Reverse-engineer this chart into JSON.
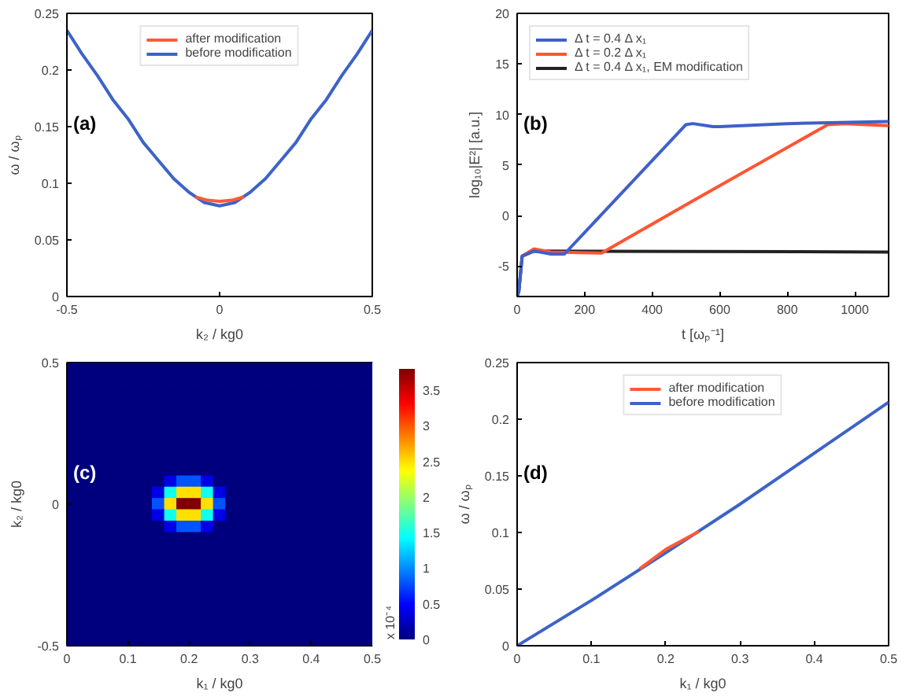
{
  "chart_data": [
    {
      "type": "line",
      "xlabel": "k₂ / kg0",
      "ylabel": "ω / ωₚ",
      "annotations": [
        "(a)"
      ],
      "xlim": [
        -0.5,
        0.5
      ],
      "ylim": [
        0,
        0.25
      ],
      "xticks": [
        -0.5,
        0,
        0.5
      ],
      "yticks": [
        0,
        0.05,
        0.1,
        0.15,
        0.2,
        0.25
      ],
      "legend": "top",
      "series": [
        {
          "name": "after modification",
          "color": "#ff5a36",
          "x": [
            -0.08,
            -0.04,
            0,
            0.04,
            0.08
          ],
          "values": [
            0.088,
            0.085,
            0.084,
            0.085,
            0.088
          ]
        },
        {
          "name": "before modification",
          "color": "#3d63c8",
          "x": [
            -0.5,
            -0.45,
            -0.4,
            -0.35,
            -0.3,
            -0.25,
            -0.2,
            -0.15,
            -0.1,
            -0.05,
            0,
            0.05,
            0.1,
            0.15,
            0.2,
            0.25,
            0.3,
            0.35,
            0.4,
            0.45,
            0.5
          ],
          "values": [
            0.235,
            0.214,
            0.195,
            0.174,
            0.157,
            0.136,
            0.12,
            0.104,
            0.092,
            0.083,
            0.08,
            0.083,
            0.092,
            0.104,
            0.12,
            0.136,
            0.157,
            0.174,
            0.195,
            0.214,
            0.235
          ]
        }
      ]
    },
    {
      "type": "line",
      "xlabel": "t [ωₚ⁻¹]",
      "ylabel": "log₁₀|E²| [a.u.]",
      "annotations": [
        "(b)"
      ],
      "xlim": [
        0,
        1100
      ],
      "ylim": [
        -8,
        20
      ],
      "xticks": [
        0,
        200,
        400,
        600,
        800,
        1000
      ],
      "yticks": [
        -5,
        0,
        5,
        10,
        15,
        20
      ],
      "legend": "top left",
      "series": [
        {
          "name": "Δ t = 0.4 Δ x₁",
          "color": "#4060c8",
          "x": [
            0,
            5,
            15,
            50,
            100,
            140,
            500,
            520,
            580,
            600,
            800,
            1100
          ],
          "values": [
            -8,
            -7.5,
            -4,
            -3.5,
            -3.8,
            -3.8,
            9,
            9.1,
            8.8,
            8.8,
            9.1,
            9.3
          ]
        },
        {
          "name": "Δ t = 0.2 Δ x₁",
          "color": "#ff5533",
          "x": [
            15,
            50,
            100,
            250,
            480,
            920,
            970,
            1100
          ],
          "values": [
            -4,
            -3.3,
            -3.6,
            -3.7,
            0.7,
            9,
            9.1,
            8.9
          ]
        },
        {
          "name": "Δ t = 0.4 Δ x₁, EM modification",
          "color": "#222222",
          "x": [
            0,
            5,
            15,
            50,
            100,
            1100
          ],
          "values": [
            -8,
            -7.5,
            -4,
            -3.5,
            null,
            -3.6
          ]
        }
      ]
    },
    {
      "type": "heatmap",
      "xlabel": "k₁ / kg0",
      "ylabel": "k₂ / kg0",
      "annotations": [
        "(c)"
      ],
      "xlim": [
        0,
        0.5
      ],
      "ylim": [
        -0.5,
        0.5
      ],
      "xticks": [
        0,
        0.1,
        0.2,
        0.3,
        0.4,
        0.5
      ],
      "yticks": [
        -0.5,
        0,
        0.5
      ],
      "clim": [
        0,
        3.8
      ],
      "cticks": [
        0,
        0.5,
        1,
        1.5,
        2,
        2.5,
        3,
        3.5
      ],
      "clabel": "x 10⁻⁴",
      "cells": [
        [
          0,
          0,
          0,
          0,
          0,
          0,
          0,
          0,
          0,
          0,
          0,
          0,
          0,
          0,
          0,
          0,
          0,
          0,
          0,
          0,
          0,
          0,
          0,
          0,
          0
        ],
        [
          0,
          0,
          0,
          0,
          0,
          0,
          0,
          0,
          0,
          0,
          0,
          0,
          0,
          0,
          0,
          0,
          0,
          0,
          0,
          0,
          0,
          0,
          0,
          0,
          0
        ],
        [
          0,
          0,
          0,
          0,
          0,
          0,
          0,
          0,
          0,
          0,
          0,
          0,
          0,
          0,
          0,
          0,
          0,
          0,
          0,
          0,
          0,
          0,
          0,
          0,
          0
        ],
        [
          0,
          0,
          0,
          0,
          0,
          0,
          0,
          0,
          0,
          0,
          0,
          0,
          0,
          0,
          0,
          0,
          0,
          0,
          0,
          0,
          0,
          0,
          0,
          0,
          0
        ],
        [
          0,
          0,
          0,
          0,
          0,
          0,
          0,
          0,
          0,
          0,
          0,
          0,
          0,
          0,
          0,
          0,
          0,
          0,
          0,
          0,
          0,
          0,
          0,
          0,
          0
        ],
        [
          0,
          0,
          0,
          0,
          0,
          0,
          0,
          0,
          0,
          0,
          0,
          0,
          0,
          0,
          0,
          0,
          0,
          0,
          0,
          0,
          0,
          0,
          0,
          0,
          0
        ],
        [
          0,
          0,
          0,
          0,
          0,
          0,
          0,
          0,
          0,
          0,
          0,
          0,
          0,
          0,
          0,
          0,
          0,
          0,
          0,
          0,
          0,
          0,
          0,
          0,
          0
        ],
        [
          0,
          0,
          0,
          0,
          0,
          0,
          0,
          0,
          0,
          0,
          0,
          0,
          0,
          0,
          0,
          0,
          0,
          0,
          0,
          0,
          0,
          0,
          0,
          0,
          0
        ],
        [
          0,
          0,
          0,
          0,
          0,
          0,
          0,
          0,
          0,
          0,
          0,
          0,
          0,
          0,
          0,
          0,
          0,
          0,
          0,
          0,
          0,
          0,
          0,
          0,
          0
        ],
        [
          0,
          0,
          0,
          0,
          0,
          0,
          0,
          0,
          0,
          0,
          0,
          0,
          0,
          0,
          0,
          0,
          0,
          0,
          0,
          0,
          0,
          0,
          0,
          0,
          0
        ],
        [
          0,
          0,
          0,
          0,
          0,
          0,
          0,
          0,
          0.4,
          0.8,
          0.8,
          0.4,
          0,
          0,
          0,
          0,
          0,
          0,
          0,
          0,
          0,
          0,
          0,
          0,
          0
        ],
        [
          0,
          0,
          0,
          0,
          0,
          0,
          0,
          0.4,
          1.5,
          2.5,
          2.5,
          1.5,
          0.4,
          0,
          0,
          0,
          0,
          0,
          0,
          0,
          0,
          0,
          0,
          0,
          0
        ],
        [
          0,
          0,
          0,
          0,
          0,
          0,
          0,
          0.8,
          2.5,
          3.8,
          3.8,
          2.5,
          0.8,
          0,
          0,
          0,
          0,
          0,
          0,
          0,
          0,
          0,
          0,
          0,
          0
        ],
        [
          0,
          0,
          0,
          0,
          0,
          0,
          0,
          0.4,
          1.5,
          2.5,
          2.5,
          1.5,
          0.4,
          0,
          0,
          0,
          0,
          0,
          0,
          0,
          0,
          0,
          0,
          0,
          0
        ],
        [
          0,
          0,
          0,
          0,
          0,
          0,
          0,
          0,
          0.4,
          0.8,
          0.8,
          0.4,
          0,
          0,
          0,
          0,
          0,
          0,
          0,
          0,
          0,
          0,
          0,
          0,
          0
        ],
        [
          0,
          0,
          0,
          0,
          0,
          0,
          0,
          0,
          0,
          0,
          0,
          0,
          0,
          0,
          0,
          0,
          0,
          0,
          0,
          0,
          0,
          0,
          0,
          0,
          0
        ],
        [
          0,
          0,
          0,
          0,
          0,
          0,
          0,
          0,
          0,
          0,
          0,
          0,
          0,
          0,
          0,
          0,
          0,
          0,
          0,
          0,
          0,
          0,
          0,
          0,
          0
        ],
        [
          0,
          0,
          0,
          0,
          0,
          0,
          0,
          0,
          0,
          0,
          0,
          0,
          0,
          0,
          0,
          0,
          0,
          0,
          0,
          0,
          0,
          0,
          0,
          0,
          0
        ],
        [
          0,
          0,
          0,
          0,
          0,
          0,
          0,
          0,
          0,
          0,
          0,
          0,
          0,
          0,
          0,
          0,
          0,
          0,
          0,
          0,
          0,
          0,
          0,
          0,
          0
        ],
        [
          0,
          0,
          0,
          0,
          0,
          0,
          0,
          0,
          0,
          0,
          0,
          0,
          0,
          0,
          0,
          0,
          0,
          0,
          0,
          0,
          0,
          0,
          0,
          0,
          0
        ],
        [
          0,
          0,
          0,
          0,
          0,
          0,
          0,
          0,
          0,
          0,
          0,
          0,
          0,
          0,
          0,
          0,
          0,
          0,
          0,
          0,
          0,
          0,
          0,
          0,
          0
        ],
        [
          0,
          0,
          0,
          0,
          0,
          0,
          0,
          0,
          0,
          0,
          0,
          0,
          0,
          0,
          0,
          0,
          0,
          0,
          0,
          0,
          0,
          0,
          0,
          0,
          0
        ],
        [
          0,
          0,
          0,
          0,
          0,
          0,
          0,
          0,
          0,
          0,
          0,
          0,
          0,
          0,
          0,
          0,
          0,
          0,
          0,
          0,
          0,
          0,
          0,
          0,
          0
        ],
        [
          0,
          0,
          0,
          0,
          0,
          0,
          0,
          0,
          0,
          0,
          0,
          0,
          0,
          0,
          0,
          0,
          0,
          0,
          0,
          0,
          0,
          0,
          0,
          0,
          0
        ],
        [
          0,
          0,
          0,
          0,
          0,
          0,
          0,
          0,
          0,
          0,
          0,
          0,
          0,
          0,
          0,
          0,
          0,
          0,
          0,
          0,
          0,
          0,
          0,
          0,
          0
        ]
      ]
    },
    {
      "type": "line",
      "xlabel": "k₁ / kg0",
      "ylabel": "ω / ωₚ",
      "annotations": [
        "(d)"
      ],
      "xlim": [
        0,
        0.5
      ],
      "ylim": [
        0,
        0.25
      ],
      "xticks": [
        0,
        0.1,
        0.2,
        0.3,
        0.4,
        0.5
      ],
      "yticks": [
        0,
        0.05,
        0.1,
        0.15,
        0.2,
        0.25
      ],
      "legend": "top",
      "series": [
        {
          "name": "after modification",
          "color": "#ff5a36",
          "x": [
            0.165,
            0.2,
            0.245
          ],
          "values": [
            0.068,
            0.085,
            0.101
          ]
        },
        {
          "name": "before modification",
          "color": "#3d63c8",
          "x": [
            0,
            0.1,
            0.2,
            0.3,
            0.4,
            0.5
          ],
          "values": [
            0,
            0.04,
            0.082,
            0.125,
            0.17,
            0.215
          ]
        }
      ]
    }
  ]
}
